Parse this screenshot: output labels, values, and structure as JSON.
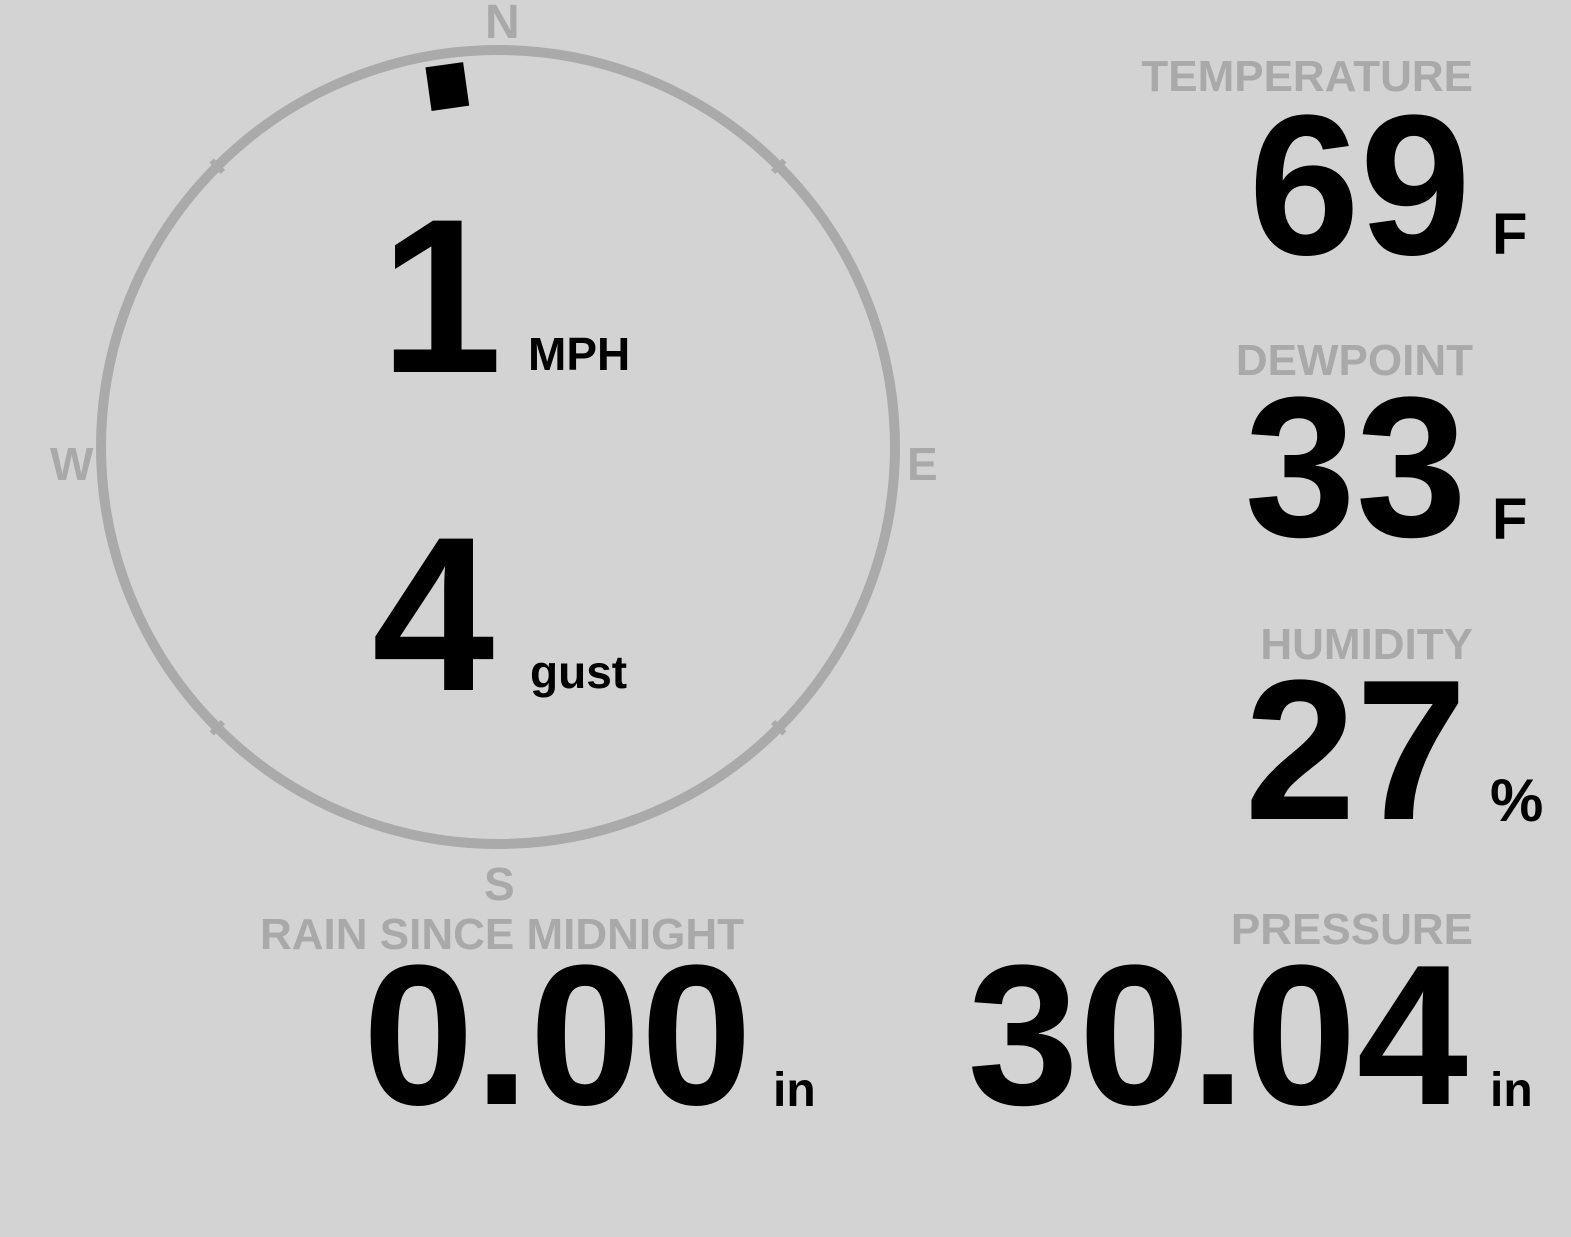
{
  "colors": {
    "background": "#d3d3d3",
    "label": "#a9a9a9",
    "value": "#000000",
    "compass_ring": "#aaaaaa"
  },
  "wind": {
    "compass": {
      "north": "N",
      "east": "E",
      "south": "S",
      "west": "W"
    },
    "direction_deg": 352,
    "speed": "1",
    "speed_unit": "MPH",
    "gust": "4",
    "gust_unit": "gust"
  },
  "temperature": {
    "label": "TEMPERATURE",
    "value": "69",
    "unit": "F"
  },
  "dewpoint": {
    "label": "DEWPOINT",
    "value": "33",
    "unit": "F"
  },
  "humidity": {
    "label": "HUMIDITY",
    "value": "27",
    "unit": "%"
  },
  "pressure": {
    "label": "PRESSURE",
    "value": "30.04",
    "unit": "in"
  },
  "rain": {
    "label": "RAIN SINCE MIDNIGHT",
    "value": "0.00",
    "unit": "in"
  }
}
